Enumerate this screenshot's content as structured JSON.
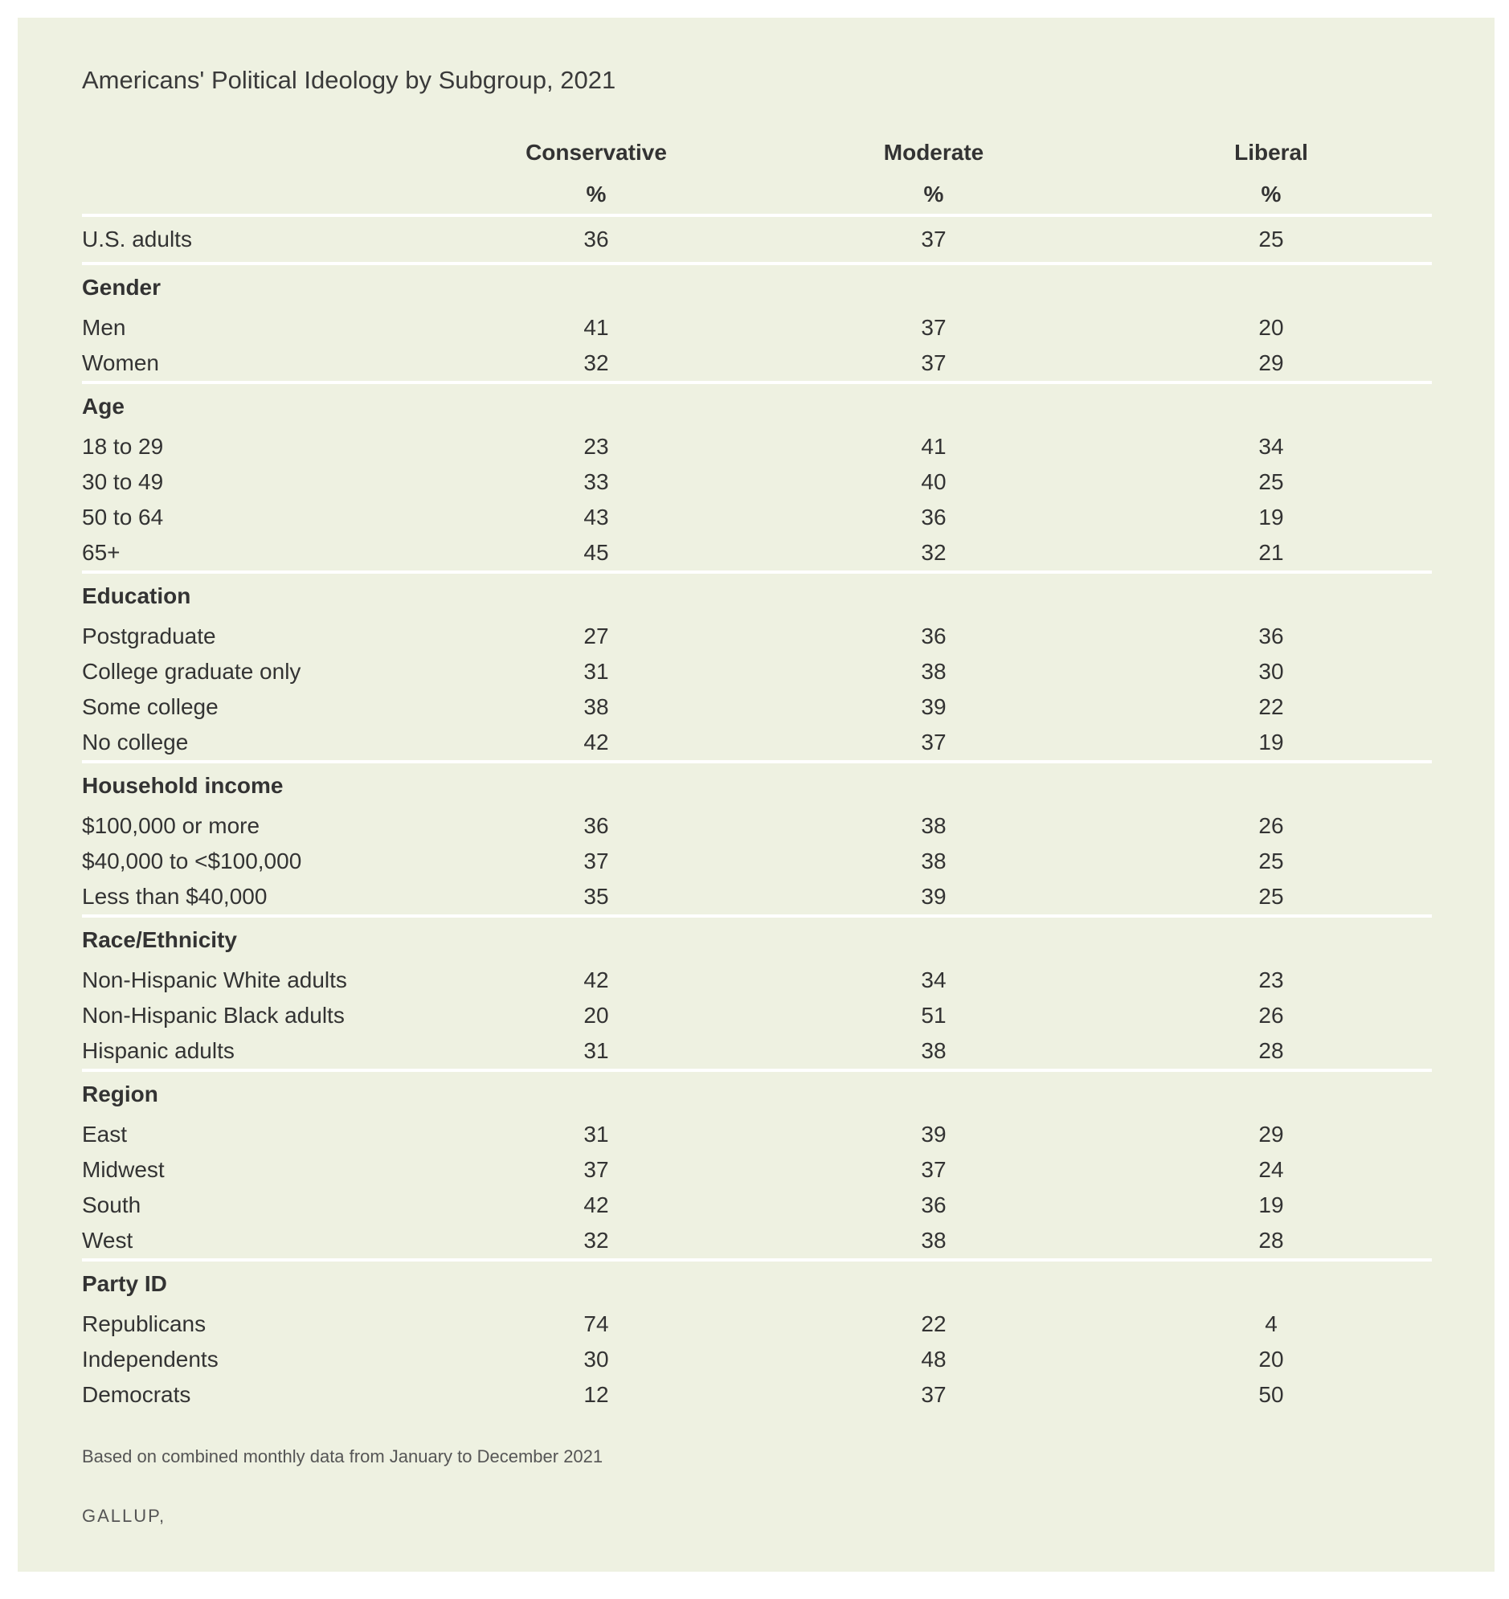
{
  "title": "Americans' Political Ideology by Subgroup, 2021",
  "footnote": "Based on combined monthly data from January to December 2021",
  "brand": "GALLUP,",
  "chart_data": {
    "type": "table",
    "title": "Americans' Political Ideology by Subgroup, 2021",
    "columns": [
      "Conservative",
      "Moderate",
      "Liberal"
    ],
    "unit": "%",
    "overall": {
      "label": "U.S. adults",
      "values": [
        "36",
        "37",
        "25"
      ]
    },
    "groups": [
      {
        "name": "Gender",
        "rows": [
          {
            "label": "Men",
            "values": [
              "41",
              "37",
              "20"
            ]
          },
          {
            "label": "Women",
            "values": [
              "32",
              "37",
              "29"
            ]
          }
        ]
      },
      {
        "name": "Age",
        "rows": [
          {
            "label": "18 to 29",
            "values": [
              "23",
              "41",
              "34"
            ]
          },
          {
            "label": "30 to 49",
            "values": [
              "33",
              "40",
              "25"
            ]
          },
          {
            "label": "50 to 64",
            "values": [
              "43",
              "36",
              "19"
            ]
          },
          {
            "label": "65+",
            "values": [
              "45",
              "32",
              "21"
            ]
          }
        ]
      },
      {
        "name": "Education",
        "rows": [
          {
            "label": "Postgraduate",
            "values": [
              "27",
              "36",
              "36"
            ]
          },
          {
            "label": "College graduate only",
            "values": [
              "31",
              "38",
              "30"
            ]
          },
          {
            "label": "Some college",
            "values": [
              "38",
              "39",
              "22"
            ]
          },
          {
            "label": "No college",
            "values": [
              "42",
              "37",
              "19"
            ]
          }
        ]
      },
      {
        "name": "Household income",
        "rows": [
          {
            "label": "$100,000 or more",
            "values": [
              "36",
              "38",
              "26"
            ]
          },
          {
            "label": "$40,000 to <$100,000",
            "values": [
              "37",
              "38",
              "25"
            ]
          },
          {
            "label": "Less than $40,000",
            "values": [
              "35",
              "39",
              "25"
            ]
          }
        ]
      },
      {
        "name": "Race/Ethnicity",
        "rows": [
          {
            "label": "Non-Hispanic White adults",
            "values": [
              "42",
              "34",
              "23"
            ]
          },
          {
            "label": "Non-Hispanic Black adults",
            "values": [
              "20",
              "51",
              "26"
            ]
          },
          {
            "label": "Hispanic adults",
            "values": [
              "31",
              "38",
              "28"
            ]
          }
        ]
      },
      {
        "name": "Region",
        "rows": [
          {
            "label": "East",
            "values": [
              "31",
              "39",
              "29"
            ]
          },
          {
            "label": "Midwest",
            "values": [
              "37",
              "37",
              "24"
            ]
          },
          {
            "label": "South",
            "values": [
              "42",
              "36",
              "19"
            ]
          },
          {
            "label": "West",
            "values": [
              "32",
              "38",
              "28"
            ]
          }
        ]
      },
      {
        "name": "Party ID",
        "rows": [
          {
            "label": "Republicans",
            "values": [
              "74",
              "22",
              "4"
            ]
          },
          {
            "label": "Independents",
            "values": [
              "30",
              "48",
              "20"
            ]
          },
          {
            "label": "Democrats",
            "values": [
              "12",
              "37",
              "50"
            ]
          }
        ]
      }
    ]
  }
}
